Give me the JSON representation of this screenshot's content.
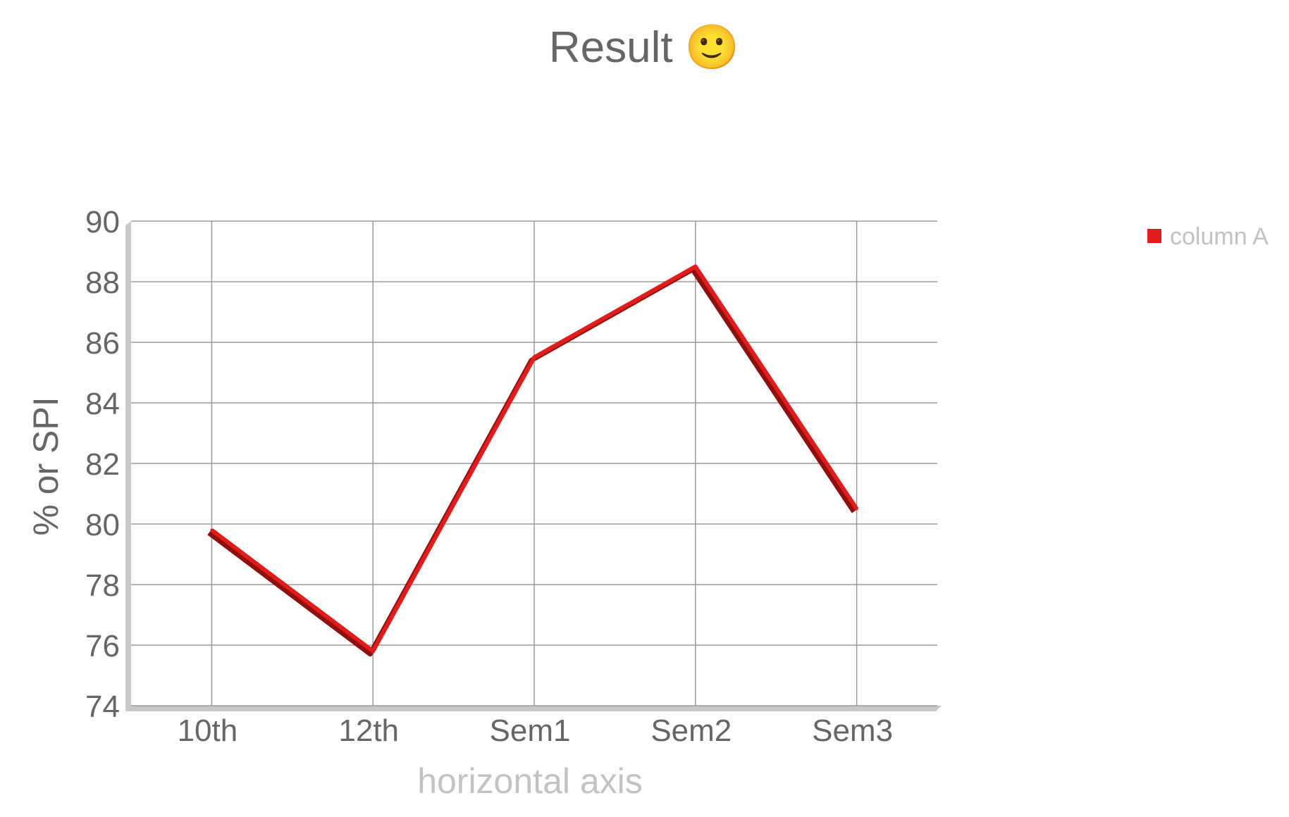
{
  "chart_data": {
    "type": "line",
    "title": "Result 🙂",
    "xlabel": "horizontal axis",
    "ylabel": "% or SPI",
    "categories": [
      "10th",
      "12th",
      "Sem1",
      "Sem2",
      "Sem3"
    ],
    "series": [
      {
        "name": "column A",
        "values": [
          79.8,
          75.8,
          85.5,
          88.5,
          80.5
        ],
        "color": "#e21b1b"
      }
    ],
    "ylim": [
      74,
      90
    ],
    "yticks": [
      "74",
      "76",
      "78",
      "80",
      "82",
      "84",
      "86",
      "88",
      "90"
    ],
    "grid": true,
    "legend_position": "top-right",
    "three_d": true
  }
}
